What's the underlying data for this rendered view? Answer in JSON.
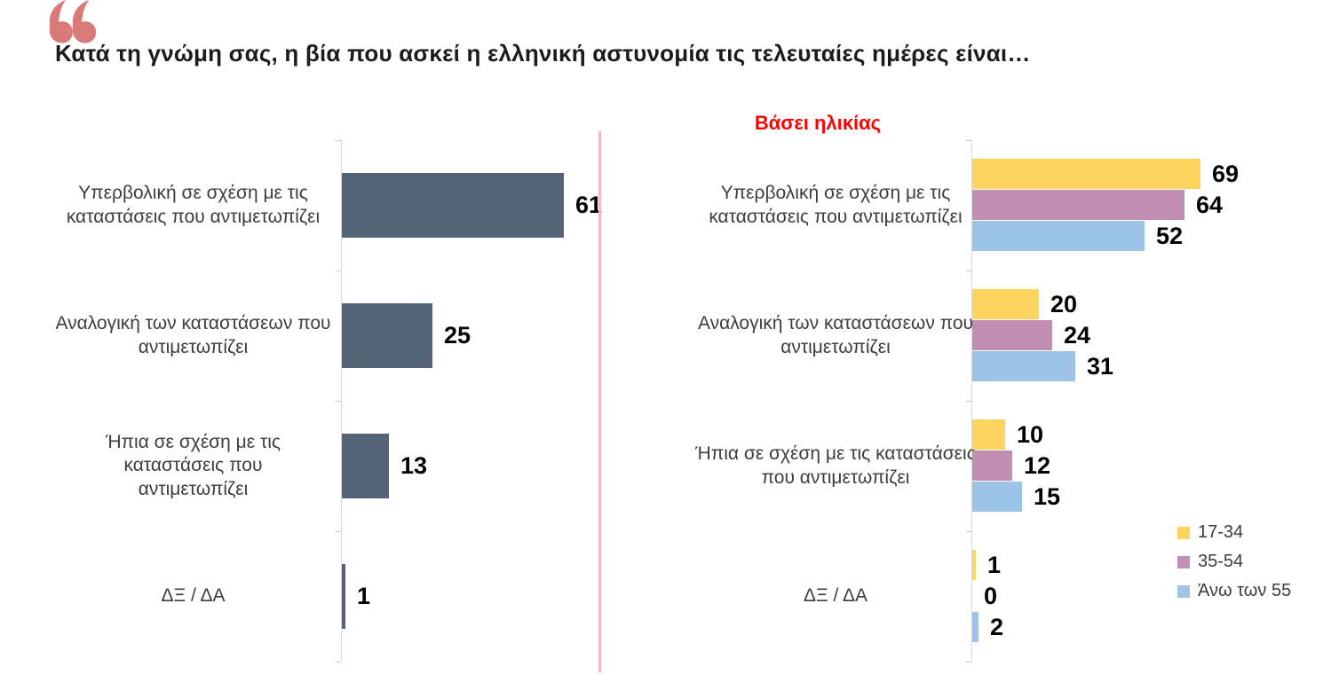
{
  "header": {
    "quote_icon_color": "#D87A78",
    "title": "Κατά τη γνώμη σας, η βία που ασκεί η ελληνική αστυνομία τις τελευταίες ημέρες είναι…"
  },
  "divider_color": "#F2B9BE",
  "chart_data": [
    {
      "type": "bar",
      "orientation": "horizontal",
      "name": "overall",
      "title": "",
      "categories": [
        "Υπερβολική σε σχέση με τις\nκαταστάσεις που αντιμετωπίζει",
        "Αναλογική των καταστάσεων που\nαντιμετωπίζει",
        "Ήπια σε σχέση με τις καταστάσεις που\nαντιμετωπίζει",
        "ΔΞ / ΔΑ"
      ],
      "values": [
        61,
        25,
        13,
        1
      ],
      "bar_color": "#546375",
      "value_label_color": "#000000",
      "axis_color": "#D9D9D9",
      "xlim": [
        0,
        70
      ],
      "grid": false,
      "value_labels": true
    },
    {
      "type": "bar",
      "orientation": "horizontal",
      "name": "by-age",
      "title": "Βάσει ηλικίας",
      "title_color": "#FF0000",
      "categories": [
        "Υπερβολική σε σχέση με τις\nκαταστάσεις που αντιμετωπίζει",
        "Αναλογική των καταστάσεων που\nαντιμετωπίζει",
        "Ήπια σε σχέση με τις καταστάσεις\nπου αντιμετωπίζει",
        "ΔΞ / ΔΑ"
      ],
      "series": [
        {
          "name": "17-34",
          "color": "#FCD45E",
          "values": [
            69,
            20,
            10,
            1
          ]
        },
        {
          "name": "35-54",
          "color": "#C18FB2",
          "values": [
            64,
            24,
            12,
            0
          ]
        },
        {
          "name": "Άνω των 55",
          "color": "#9DC3E6",
          "values": [
            52,
            31,
            15,
            2
          ]
        }
      ],
      "axis_color": "#D9D9D9",
      "xlim": [
        0,
        75
      ],
      "grid": false,
      "value_labels": true,
      "legend_position": "bottom-right"
    }
  ]
}
